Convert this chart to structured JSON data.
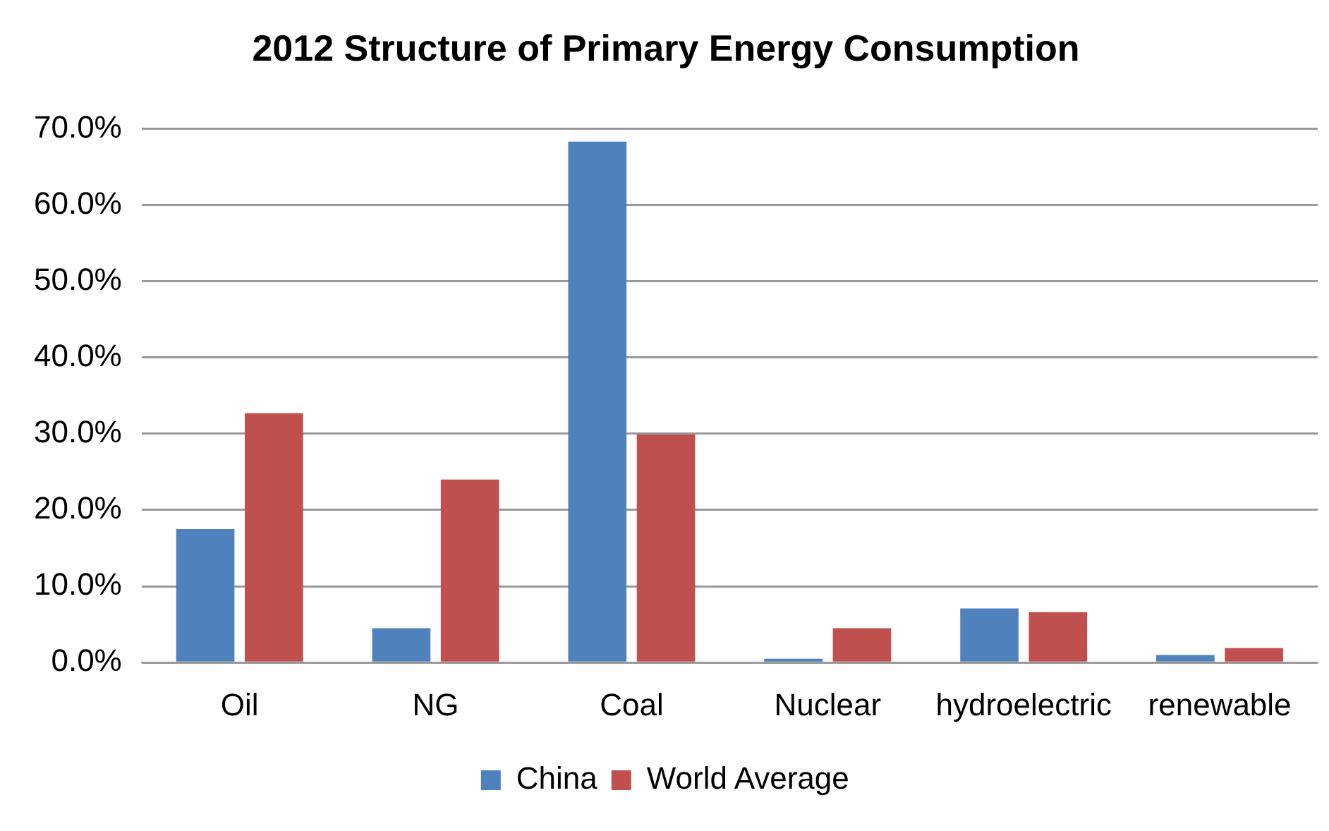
{
  "chart_data": {
    "type": "bar",
    "title": "2012 Structure of Primary Energy Consumption",
    "categories": [
      "Oil",
      "NG",
      "Coal",
      "Nuclear",
      "hydroelectric",
      "renewable"
    ],
    "series": [
      {
        "name": "China",
        "color": "#4f81bd",
        "values": [
          17.5,
          4.5,
          68.3,
          0.5,
          7.1,
          1.0
        ]
      },
      {
        "name": "World Average",
        "color": "#c0504d",
        "values": [
          32.7,
          24.0,
          29.9,
          4.5,
          6.6,
          1.9
        ]
      }
    ],
    "ylim": [
      0,
      70
    ],
    "yticks": [
      {
        "value": 0,
        "label": "0.0%"
      },
      {
        "value": 10,
        "label": "10.0%"
      },
      {
        "value": 20,
        "label": "20.0%"
      },
      {
        "value": 30,
        "label": "30.0%"
      },
      {
        "value": 40,
        "label": "40.0%"
      },
      {
        "value": 50,
        "label": "50.0%"
      },
      {
        "value": 60,
        "label": "60.0%"
      },
      {
        "value": 70,
        "label": "70.0%"
      }
    ],
    "grid": "y",
    "legend": "bottom"
  }
}
